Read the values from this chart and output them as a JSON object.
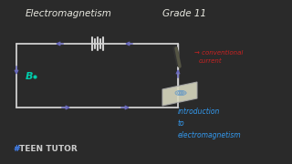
{
  "bg_color": "#2a2a2a",
  "title_left": "Electromagnetism",
  "title_right": "Grade 11",
  "title_color": "#e8e8e0",
  "title_fontsize": 7.5,
  "B_label": "B",
  "B_color": "#00ccaa",
  "conventional_line1": "→ conventional",
  "conventional_line2": "current",
  "conventional_color": "#cc2222",
  "intro_text": "introduction\nto\nelectromagnetism",
  "intro_color": "#3399ee",
  "teen_tutor_hash_color": "#4488ff",
  "teen_tutor_text": "TEEN TUTOR",
  "teen_tutor_color": "#cccccc",
  "circuit_color": "#d0d0d0",
  "arrow_color": "#6666bb",
  "paper_face": "#d8d8c0",
  "paper_edge": "#aaaaaa"
}
